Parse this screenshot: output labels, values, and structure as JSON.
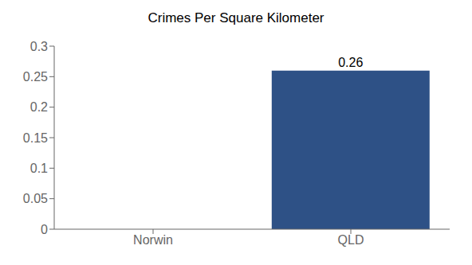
{
  "chart_data": {
    "type": "bar",
    "title": "Crimes Per Square Kilometer",
    "categories": [
      "Norwin",
      "QLD"
    ],
    "values": [
      0,
      0.26
    ],
    "color": "#2e5186",
    "ylim": [
      0,
      0.3
    ],
    "yticks": [
      0,
      0.05,
      0.1,
      0.15,
      0.2,
      0.25,
      0.3
    ],
    "grid": false,
    "data_labels": true
  }
}
